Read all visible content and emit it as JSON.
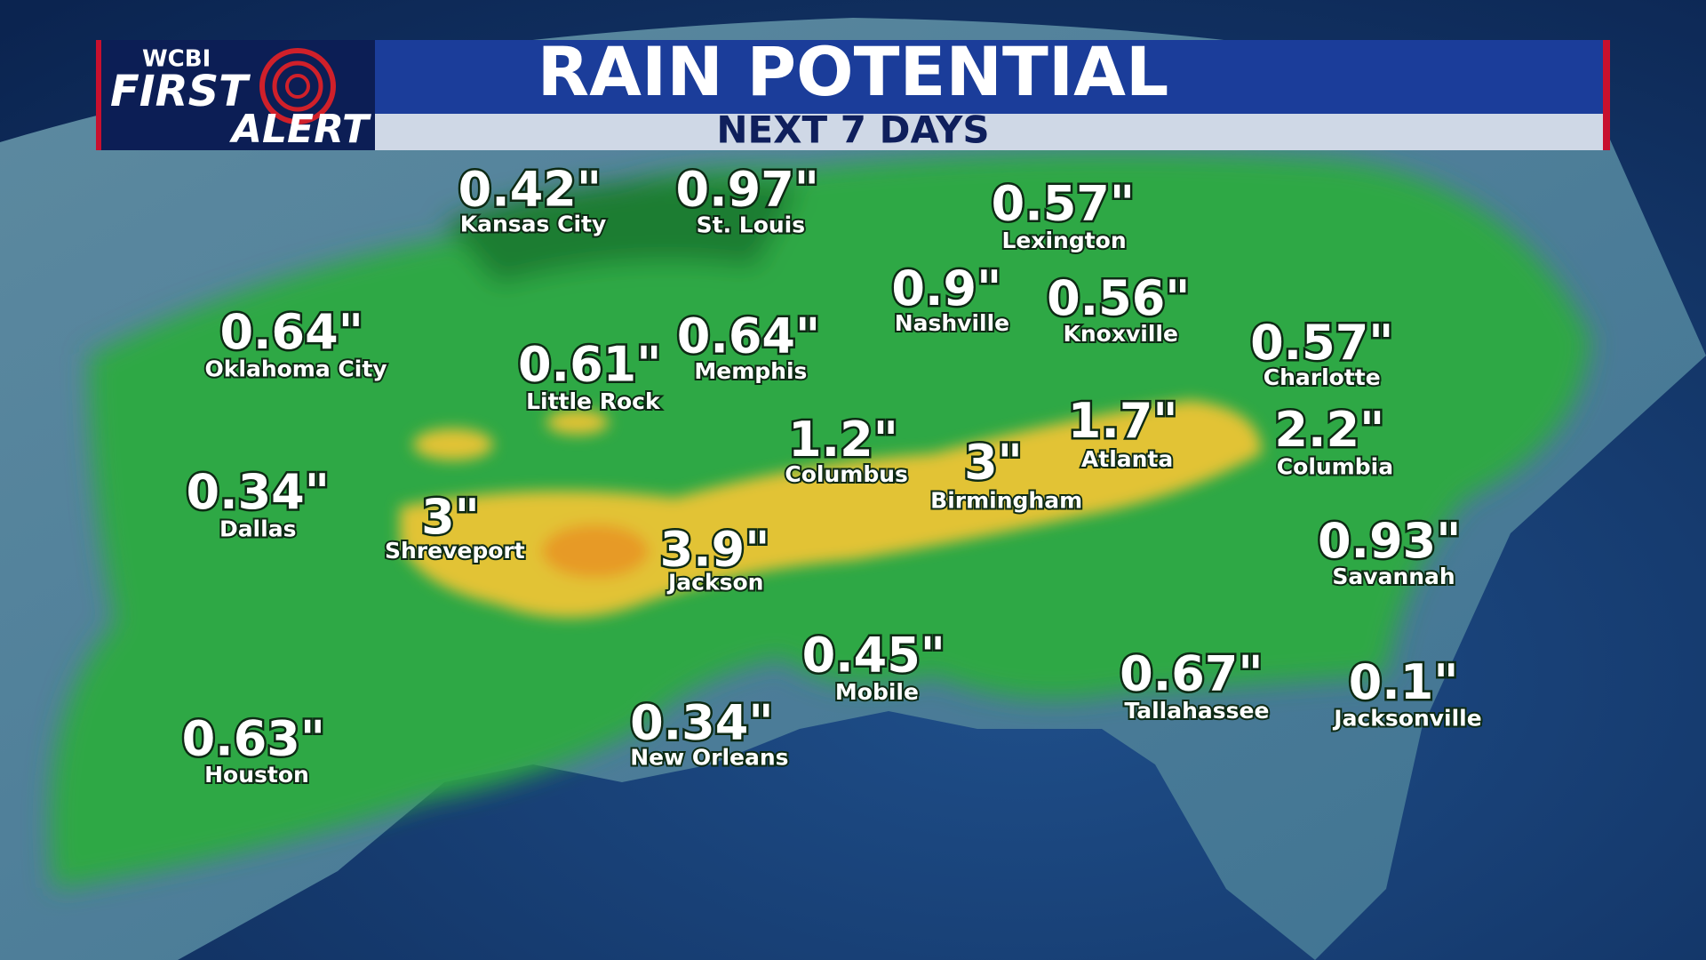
{
  "header": {
    "title": "RAIN POTENTIAL",
    "subtitle": "NEXT 7 DAYS"
  },
  "logo": {
    "station": "WCBI",
    "line1": "FIRST",
    "line2": "ALERT"
  },
  "cities": [
    {
      "name": "Kansas City",
      "amount": "0.42\""
    },
    {
      "name": "St. Louis",
      "amount": "0.97\""
    },
    {
      "name": "Lexington",
      "amount": "0.57\""
    },
    {
      "name": "Nashville",
      "amount": "0.9\""
    },
    {
      "name": "Knoxville",
      "amount": "0.56\""
    },
    {
      "name": "Oklahoma City",
      "amount": "0.64\""
    },
    {
      "name": "Little Rock",
      "amount": "0.61\""
    },
    {
      "name": "Memphis",
      "amount": "0.64\""
    },
    {
      "name": "Charlotte",
      "amount": "0.57\""
    },
    {
      "name": "Columbus",
      "amount": "1.2\""
    },
    {
      "name": "Atlanta",
      "amount": "1.7\""
    },
    {
      "name": "Columbia",
      "amount": "2.2\""
    },
    {
      "name": "Birmingham",
      "amount": "3\""
    },
    {
      "name": "Dallas",
      "amount": "0.34\""
    },
    {
      "name": "Shreveport",
      "amount": "3\""
    },
    {
      "name": "Jackson",
      "amount": "3.9\""
    },
    {
      "name": "Savannah",
      "amount": "0.93\""
    },
    {
      "name": "Mobile",
      "amount": "0.45\""
    },
    {
      "name": "Tallahassee",
      "amount": "0.67\""
    },
    {
      "name": "Jacksonville",
      "amount": "0.1\""
    },
    {
      "name": "New Orleans",
      "amount": "0.34\""
    },
    {
      "name": "Houston",
      "amount": "0.63\""
    }
  ]
}
